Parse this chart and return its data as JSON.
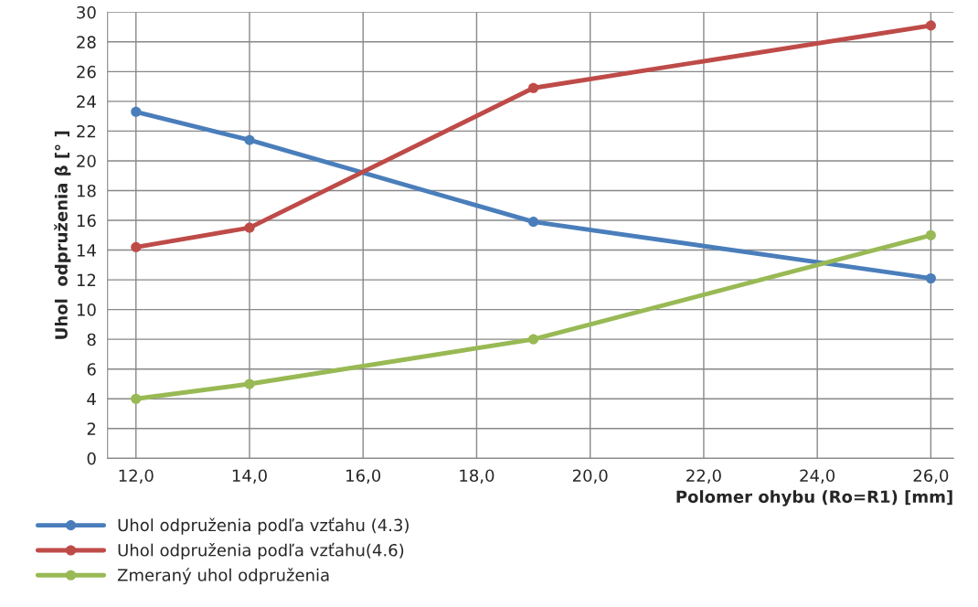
{
  "chart_data": {
    "type": "line",
    "xlabel": "Polomer ohybu (Ro=R1) [mm]",
    "ylabel": "Uhol  odpruženia β [° ]",
    "x": [
      12,
      14,
      19,
      26
    ],
    "series": [
      {
        "name": "Uhol odpruženia podľa vzťahu (4.3)",
        "color": "#4a7ebb",
        "values": [
          23.3,
          21.4,
          15.9,
          12.1
        ]
      },
      {
        "name": "Uhol odpruženia podľa vzťahu(4.6)",
        "color": "#be4b48",
        "values": [
          14.2,
          15.5,
          24.9,
          29.1
        ]
      },
      {
        "name": "Zmeraný uhol odpruženia",
        "color": "#98b954",
        "values": [
          4,
          5,
          8,
          15
        ]
      }
    ],
    "xlim": [
      11.5,
      26.4
    ],
    "xticks": [
      {
        "value": 12,
        "label": "12,0"
      },
      {
        "value": 14,
        "label": "14,0"
      },
      {
        "value": 16,
        "label": "16,0"
      },
      {
        "value": 18,
        "label": "18,0"
      },
      {
        "value": 20,
        "label": "20,0"
      },
      {
        "value": 22,
        "label": "22,0"
      },
      {
        "value": 24,
        "label": "24,0"
      },
      {
        "value": 26,
        "label": "26,0"
      }
    ],
    "ylim": [
      0,
      30
    ],
    "yticks": [
      0,
      2,
      4,
      6,
      8,
      10,
      12,
      14,
      16,
      18,
      20,
      22,
      24,
      26,
      28,
      30
    ],
    "grid": true,
    "legend": "bottom left",
    "marker": "circle",
    "line_style": "solid"
  }
}
